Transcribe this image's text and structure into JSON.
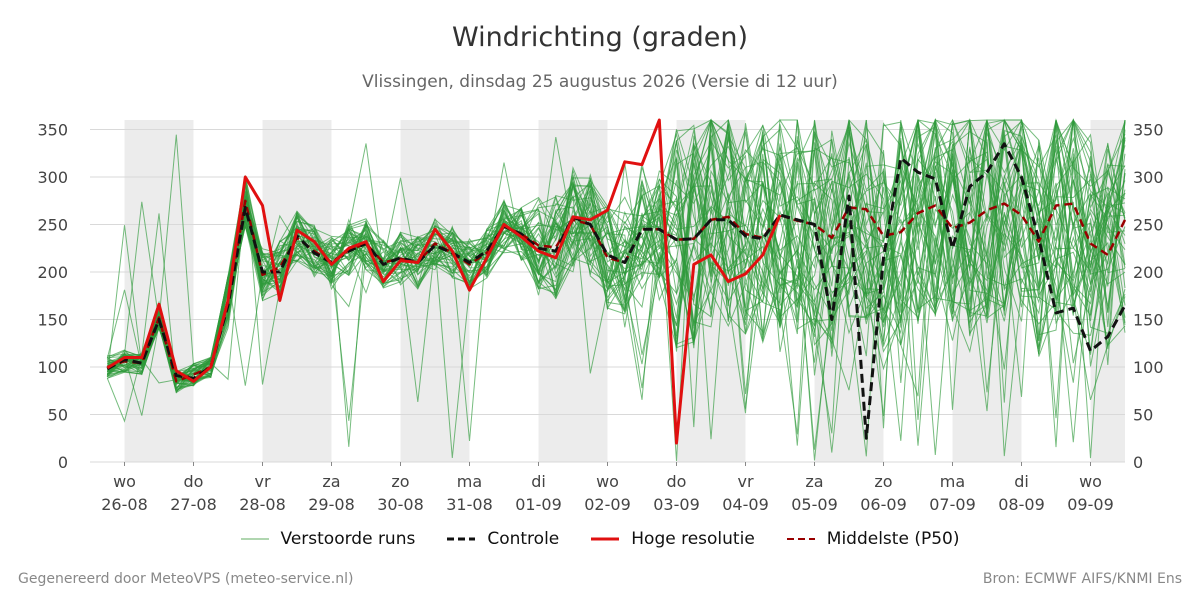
{
  "title": "Windrichting (graden)",
  "subtitle": "Vlissingen, dinsdag 25 augustus 2026 (Versie di 12 uur)",
  "footer_left": "Gegenereerd door MeteoVPS (meteo-service.nl)",
  "footer_right": "Bron: ECMWF AIFS/KNMI Ens",
  "legend": [
    {
      "label": "Verstoorde runs",
      "color": "#3a9a3a",
      "style": "thin"
    },
    {
      "label": "Controle",
      "color": "#111111",
      "style": "dashed"
    },
    {
      "label": "Hoge resolutie",
      "color": "#e01010",
      "style": "solid"
    },
    {
      "label": "Middelste (P50)",
      "color": "#990000",
      "style": "dashed"
    }
  ],
  "chart_data": {
    "type": "line",
    "title": "Windrichting (graden)",
    "ylim": [
      0,
      360
    ],
    "yticks": [
      0,
      50,
      100,
      150,
      200,
      250,
      300,
      350
    ],
    "grid": true,
    "x_range_days": [
      -0.5,
      14.5
    ],
    "x_unit": "dag (index vanaf wo 26-08)",
    "xticks": [
      {
        "day": 0,
        "dow": "wo",
        "date": "26-08"
      },
      {
        "day": 1,
        "dow": "do",
        "date": "27-08"
      },
      {
        "day": 2,
        "dow": "vr",
        "date": "28-08"
      },
      {
        "day": 3,
        "dow": "za",
        "date": "29-08"
      },
      {
        "day": 4,
        "dow": "zo",
        "date": "30-08"
      },
      {
        "day": 5,
        "dow": "ma",
        "date": "31-08"
      },
      {
        "day": 6,
        "dow": "di",
        "date": "01-09"
      },
      {
        "day": 7,
        "dow": "wo",
        "date": "02-09"
      },
      {
        "day": 8,
        "dow": "do",
        "date": "03-09"
      },
      {
        "day": 9,
        "dow": "vr",
        "date": "04-09"
      },
      {
        "day": 10,
        "dow": "za",
        "date": "05-09"
      },
      {
        "day": 11,
        "dow": "zo",
        "date": "06-09"
      },
      {
        "day": 12,
        "dow": "ma",
        "date": "07-09"
      },
      {
        "day": 13,
        "dow": "di",
        "date": "08-09"
      },
      {
        "day": 14,
        "dow": "wo",
        "date": "09-09"
      }
    ],
    "shaded_days": [
      [
        0,
        1
      ],
      [
        2,
        3
      ],
      [
        4,
        5
      ],
      [
        6,
        7
      ],
      [
        8,
        9
      ],
      [
        10,
        11
      ],
      [
        12,
        13
      ],
      [
        14,
        14.5
      ]
    ],
    "series": [
      {
        "name": "Hoge resolutie",
        "color": "#e01010",
        "x": [
          -0.25,
          0,
          0.25,
          0.5,
          0.75,
          1,
          1.25,
          1.5,
          1.75,
          2,
          2.25,
          2.5,
          2.75,
          3,
          3.25,
          3.5,
          3.75,
          4,
          4.25,
          4.5,
          4.75,
          5,
          5.25,
          5.5,
          5.75,
          6,
          6.25,
          6.5,
          6.75,
          7,
          7.25,
          7.5,
          7.75,
          8,
          8.25,
          8.5,
          8.75,
          9,
          9.25,
          9.5
        ],
        "values": [
          99,
          110,
          110,
          166,
          96,
          85,
          100,
          170,
          300,
          270,
          170,
          244,
          232,
          208,
          225,
          232,
          190,
          212,
          210,
          245,
          222,
          181,
          215,
          250,
          237,
          222,
          215,
          258,
          255,
          265,
          316,
          313,
          360,
          20,
          208,
          218,
          190,
          198,
          218,
          260
        ]
      },
      {
        "name": "Controle",
        "color": "#111111",
        "x": [
          -0.25,
          0,
          0.25,
          0.5,
          0.75,
          1,
          1.25,
          1.5,
          1.75,
          2,
          2.25,
          2.5,
          2.75,
          3,
          3.25,
          3.5,
          3.75,
          4,
          4.25,
          4.5,
          4.75,
          5,
          5.25,
          5.5,
          5.75,
          6,
          6.25,
          6.5,
          6.75,
          7,
          7.25,
          7.5,
          7.75,
          8,
          8.25,
          8.5,
          8.75,
          9,
          9.25,
          9.5,
          9.75,
          10,
          10.25,
          10.5,
          10.75,
          11,
          11.25,
          11.5,
          11.75,
          12,
          12.25,
          12.5,
          12.75,
          13,
          13.25,
          13.5,
          13.75,
          14,
          14.25,
          14.5
        ],
        "values": [
          98,
          108,
          104,
          150,
          91,
          88,
          100,
          165,
          268,
          200,
          200,
          238,
          220,
          210,
          222,
          230,
          208,
          215,
          210,
          228,
          220,
          210,
          222,
          248,
          240,
          225,
          222,
          258,
          250,
          218,
          210,
          245,
          245,
          234,
          235,
          255,
          255,
          238,
          235,
          260,
          255,
          250,
          150,
          280,
          25,
          215,
          320,
          305,
          298,
          225,
          290,
          305,
          335,
          300,
          235,
          157,
          162,
          117,
          132,
          165
        ]
      },
      {
        "name": "Middelste (P50)",
        "color": "#990000",
        "x": [
          -0.25,
          0,
          0.25,
          0.5,
          0.75,
          1,
          1.25,
          1.5,
          1.75,
          2,
          2.25,
          2.5,
          2.75,
          3,
          3.25,
          3.5,
          3.75,
          4,
          4.25,
          4.5,
          4.75,
          5,
          5.25,
          5.5,
          5.75,
          6,
          6.25,
          6.5,
          6.75,
          7,
          7.25,
          7.5,
          7.75,
          8,
          8.25,
          8.5,
          8.75,
          9,
          9.25,
          9.5,
          9.75,
          10,
          10.25,
          10.5,
          10.75,
          11,
          11.25,
          11.5,
          11.75,
          12,
          12.25,
          12.5,
          12.75,
          13,
          13.25,
          13.5,
          13.75,
          14,
          14.25,
          14.5
        ],
        "values": [
          100,
          106,
          104,
          152,
          85,
          92,
          100,
          168,
          275,
          197,
          205,
          236,
          222,
          210,
          223,
          230,
          210,
          214,
          210,
          230,
          220,
          208,
          220,
          248,
          240,
          228,
          226,
          255,
          250,
          215,
          210,
          245,
          245,
          234,
          235,
          255,
          258,
          240,
          236,
          260,
          254,
          250,
          236,
          268,
          266,
          238,
          242,
          262,
          270,
          246,
          252,
          265,
          272,
          260,
          232,
          270,
          272,
          230,
          218,
          255
        ]
      }
    ]
  }
}
